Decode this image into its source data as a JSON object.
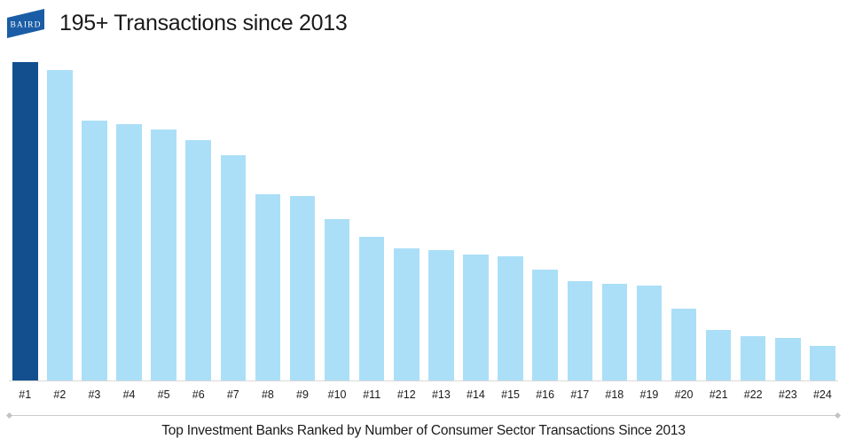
{
  "header": {
    "logo_text": "BAIRD",
    "title": "195+ Transactions since 2013"
  },
  "chart_data": {
    "type": "bar",
    "title": "195+ Transactions since 2013",
    "categories": [
      "#1",
      "#2",
      "#3",
      "#4",
      "#5",
      "#6",
      "#7",
      "#8",
      "#9",
      "#10",
      "#11",
      "#12",
      "#13",
      "#14",
      "#15",
      "#16",
      "#17",
      "#18",
      "#19",
      "#20",
      "#21",
      "#22",
      "#23",
      "#24"
    ],
    "values": [
      195,
      190,
      159,
      157,
      154,
      147,
      138,
      114,
      113,
      99,
      88,
      81,
      80,
      77,
      76,
      68,
      61,
      59,
      58,
      44,
      31,
      27,
      26,
      21
    ],
    "xlabel": "",
    "ylabel": "",
    "ylim": [
      0,
      195
    ],
    "grid": false,
    "legend": "none",
    "highlight_index": 0,
    "bar_color": "#ABDFF7",
    "highlight_color": "#134F8F"
  },
  "caption": {
    "text": "Top Investment Banks Ranked by Number of Consumer Sector Transactions Since 2013"
  },
  "colors": {
    "logo_blue": "#1A5DA6",
    "bar_light_blue": "#ABDFF7",
    "bar_dark_blue": "#134F8F",
    "axis_line": "#D9D9D9",
    "separator_line": "#C9C9C9",
    "text": "#1A1A1A"
  }
}
